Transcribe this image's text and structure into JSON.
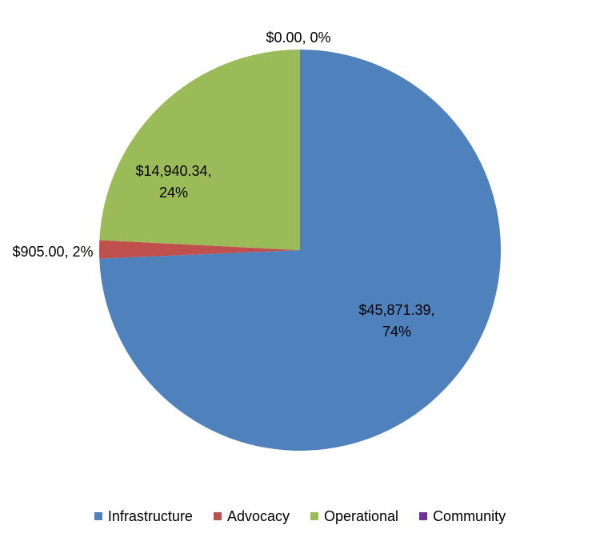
{
  "chart_data": {
    "type": "pie",
    "slices": [
      {
        "name": "Infrastructure",
        "value": 45871.39,
        "percent": 74,
        "label_line1": "$45,871.39,",
        "label_line2": "74%",
        "color": "#4F81BD"
      },
      {
        "name": "Advocacy",
        "value": 905.0,
        "percent": 2,
        "label_line1": "$905.00, 2%",
        "label_line2": "",
        "color": "#C0504D"
      },
      {
        "name": "Operational",
        "value": 14940.34,
        "percent": 24,
        "label_line1": "$14,940.34,",
        "label_line2": "24%",
        "color": "#9BBB59"
      },
      {
        "name": "Community",
        "value": 0.0,
        "percent": 0,
        "label_line1": "$0.00, 0%",
        "label_line2": "",
        "color": "#7030A0"
      }
    ],
    "legend_position": "bottom"
  }
}
